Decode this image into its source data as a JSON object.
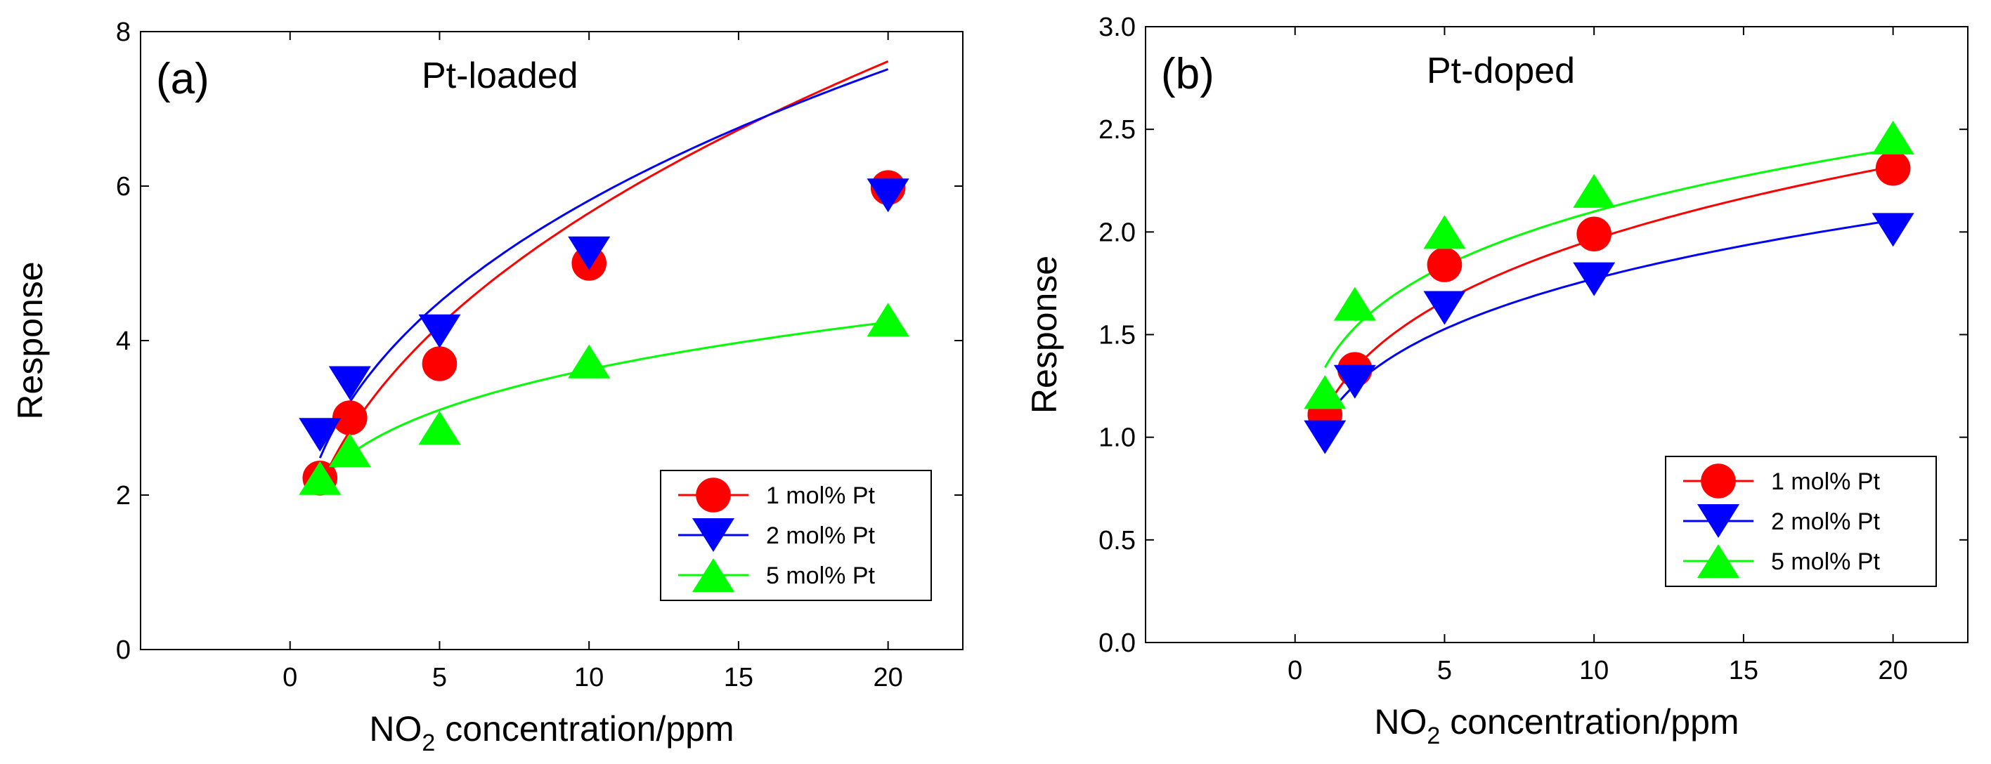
{
  "chart_data": [
    {
      "type": "scatter",
      "panel_label": "(a)",
      "title": "Pt-loaded",
      "xlabel_main": "NO",
      "xlabel_sub": "2",
      "xlabel_rest": " concentration/ppm",
      "ylabel": "Response",
      "xlim": [
        -5,
        22.5
      ],
      "ylim": [
        0,
        8
      ],
      "xticks": [
        0,
        5,
        10,
        15,
        20
      ],
      "yticks": [
        0,
        2,
        4,
        6,
        8
      ],
      "ytick_labels": [
        "0",
        "2",
        "4",
        "6",
        "8"
      ],
      "legend_position": "bottom-right",
      "series": [
        {
          "name": "1 mol% Pt",
          "color": "#ff0000",
          "marker": "circle",
          "x": [
            1,
            2,
            5,
            10,
            20
          ],
          "y": [
            2.22,
            3.0,
            3.7,
            5.0,
            5.98
          ],
          "fit": {
            "a": 2.1,
            "b": 0.43
          }
        },
        {
          "name": "2 mol% Pt",
          "color": "#0000ff",
          "marker": "triangle-down",
          "x": [
            1,
            2,
            5,
            10,
            20
          ],
          "y": [
            2.78,
            3.45,
            4.12,
            5.13,
            5.88
          ],
          "fit": {
            "a": 2.48,
            "b": 0.37
          }
        },
        {
          "name": "5 mol% Pt",
          "color": "#00ff00",
          "marker": "triangle-up",
          "x": [
            1,
            2,
            5,
            10,
            20
          ],
          "y": [
            2.22,
            2.58,
            2.87,
            3.73,
            4.27
          ],
          "fit": {
            "a": 2.16,
            "b": 0.225
          }
        }
      ]
    },
    {
      "type": "scatter",
      "panel_label": "(b)",
      "title": "Pt-doped",
      "xlabel_main": "NO",
      "xlabel_sub": "2",
      "xlabel_rest": " concentration/ppm",
      "ylabel": "Response",
      "xlim": [
        -5,
        22.5
      ],
      "ylim": [
        0,
        3
      ],
      "xticks": [
        0,
        5,
        10,
        15,
        20
      ],
      "yticks": [
        0,
        0.5,
        1.0,
        1.5,
        2.0,
        2.5,
        3.0
      ],
      "ytick_labels": [
        "0.0",
        "0.5",
        "1.0",
        "1.5",
        "2.0",
        "2.5",
        "3.0"
      ],
      "legend_position": "bottom-right",
      "series": [
        {
          "name": "1 mol% Pt",
          "color": "#ff0000",
          "marker": "circle",
          "x": [
            1,
            2,
            5,
            10,
            20
          ],
          "y": [
            1.11,
            1.33,
            1.84,
            1.99,
            2.31
          ],
          "fit": {
            "a": 1.13,
            "b": 0.24
          }
        },
        {
          "name": "2 mol% Pt",
          "color": "#0000ff",
          "marker": "triangle-down",
          "x": [
            1,
            2,
            5,
            10,
            20
          ],
          "y": [
            1.0,
            1.27,
            1.63,
            1.77,
            2.01
          ],
          "fit": {
            "a": 1.08,
            "b": 0.215
          }
        },
        {
          "name": "5 mol% Pt",
          "color": "#00ff00",
          "marker": "triangle-up",
          "x": [
            1,
            2,
            5,
            10,
            20
          ],
          "y": [
            1.22,
            1.65,
            2.0,
            2.2,
            2.46
          ],
          "fit": {
            "a": 1.34,
            "b": 0.195
          }
        }
      ]
    }
  ]
}
